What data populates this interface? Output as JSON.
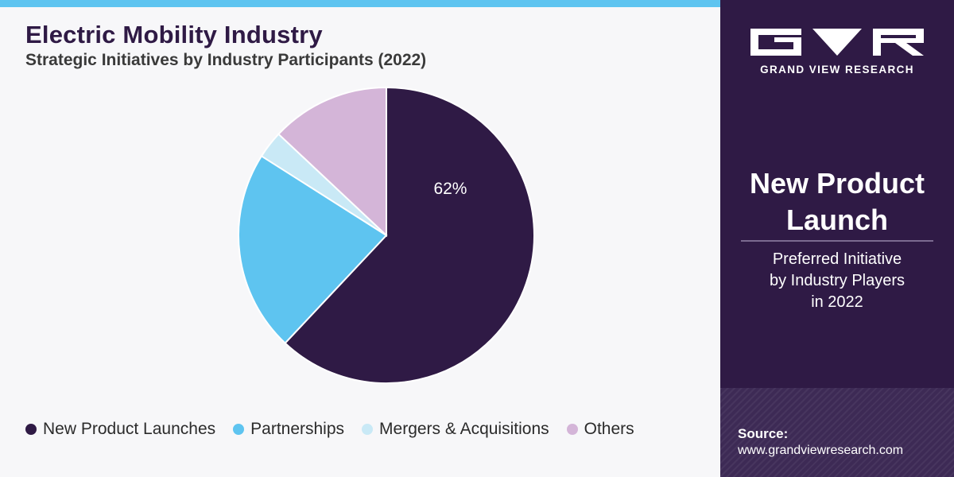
{
  "colors": {
    "dark_purple": "#2f1a45",
    "sky_blue": "#5ec4f0",
    "light_blue": "#c9e9f6",
    "lilac": "#d4b5d8",
    "side_panel": "#2f1a45"
  },
  "chart_data": {
    "type": "pie",
    "title": "Electric Mobility Industry",
    "subtitle": "Strategic Initiatives by Industry Participants (2022)",
    "categories": [
      "New Product Launches",
      "Partnerships",
      "Mergers & Acquisitions",
      "Others"
    ],
    "values": [
      62,
      22,
      3,
      13
    ],
    "unit": "%",
    "slice_labels": [
      "62%",
      "",
      "",
      ""
    ],
    "colors": [
      "#2f1a45",
      "#5ec4f0",
      "#c9e9f6",
      "#d4b5d8"
    ],
    "legend_position": "bottom",
    "start_angle_deg": 0,
    "direction": "clockwise"
  },
  "side_panel": {
    "logo_icon": "gvr-logo-icon",
    "brand": "GRAND VIEW RESEARCH",
    "headline_line1": "New Product",
    "headline_line2": "Launch",
    "desc_line1": "Preferred Initiative",
    "desc_line2": "by Industry Players",
    "desc_line3": "in 2022",
    "source_label": "Source:",
    "source_url": "www.grandviewresearch.com"
  }
}
